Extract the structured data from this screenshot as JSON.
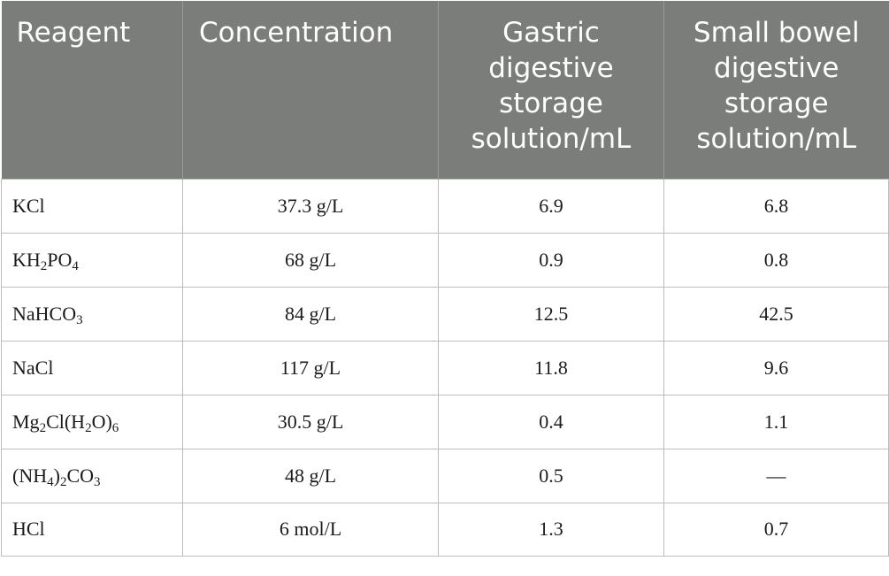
{
  "table": {
    "headers": {
      "reagent": "Reagent",
      "concentration": "Concentration",
      "gastric": "Gastric digestive storage solution/mL",
      "small_bowel": "Small bowel digestive storage solution/mL"
    },
    "rows": [
      {
        "reagent": [
          {
            "t": "KCl"
          }
        ],
        "concentration": "37.3 g/L",
        "gastric": "6.9",
        "small_bowel": "6.8"
      },
      {
        "reagent": [
          {
            "t": "KH"
          },
          {
            "t": "2",
            "sub": true
          },
          {
            "t": "PO"
          },
          {
            "t": "4",
            "sub": true
          }
        ],
        "concentration": "68 g/L",
        "gastric": "0.9",
        "small_bowel": "0.8"
      },
      {
        "reagent": [
          {
            "t": "NaHCO"
          },
          {
            "t": "3",
            "sub": true
          }
        ],
        "concentration": "84 g/L",
        "gastric": "12.5",
        "small_bowel": "42.5"
      },
      {
        "reagent": [
          {
            "t": "NaCl"
          }
        ],
        "concentration": "117 g/L",
        "gastric": "11.8",
        "small_bowel": "9.6"
      },
      {
        "reagent": [
          {
            "t": "Mg"
          },
          {
            "t": "2",
            "sub": true
          },
          {
            "t": "Cl(H"
          },
          {
            "t": "2",
            "sub": true
          },
          {
            "t": "O)"
          },
          {
            "t": "6",
            "sub": true
          }
        ],
        "concentration": "30.5 g/L",
        "gastric": "0.4",
        "small_bowel": "1.1"
      },
      {
        "reagent": [
          {
            "t": "(NH"
          },
          {
            "t": "4",
            "sub": true
          },
          {
            "t": ")"
          },
          {
            "t": "2",
            "sub": true
          },
          {
            "t": "CO"
          },
          {
            "t": "3",
            "sub": true
          }
        ],
        "concentration": "48 g/L",
        "gastric": "0.5",
        "small_bowel": "—"
      },
      {
        "reagent": [
          {
            "t": "HCl"
          }
        ],
        "concentration": "6 mol/L",
        "gastric": "1.3",
        "small_bowel": "0.7"
      }
    ]
  }
}
